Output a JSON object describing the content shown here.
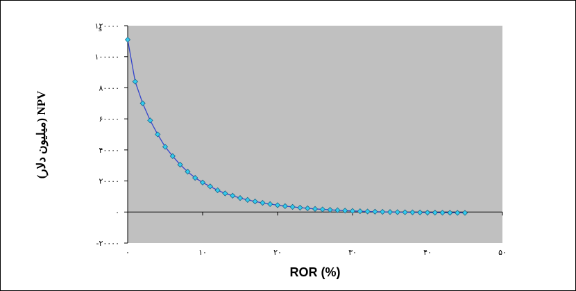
{
  "chart_data": {
    "type": "scatter",
    "title": "",
    "xlabel": "ROR (%)",
    "ylabel": "NPV (میلیون دلار)",
    "y_unit_mark": "s",
    "xlim": [
      0,
      50
    ],
    "ylim": [
      -20000,
      120000
    ],
    "grid": false,
    "legend": "none",
    "x_ticks": [
      {
        "value": 0,
        "label": "۰"
      },
      {
        "value": 10,
        "label": "۱۰"
      },
      {
        "value": 20,
        "label": "۲۰"
      },
      {
        "value": 30,
        "label": "۳۰"
      },
      {
        "value": 40,
        "label": "۴۰"
      },
      {
        "value": 50,
        "label": "۵۰"
      }
    ],
    "y_ticks": [
      {
        "value": 120000,
        "label": "۱۲۰۰۰۰"
      },
      {
        "value": 100000,
        "label": "۱۰۰۰۰۰"
      },
      {
        "value": 80000,
        "label": "۸۰۰۰۰"
      },
      {
        "value": 60000,
        "label": "۶۰۰۰۰"
      },
      {
        "value": 40000,
        "label": "۴۰۰۰۰"
      },
      {
        "value": 20000,
        "label": "۲۰۰۰۰"
      },
      {
        "value": 0,
        "label": "۰"
      },
      {
        "value": -20000,
        "label": "-۲۰۰۰۰"
      }
    ],
    "series": [
      {
        "x": [
          0,
          1,
          2,
          3,
          4,
          5,
          6,
          7,
          8,
          9,
          10,
          11,
          12,
          13,
          14,
          15,
          16,
          17,
          18,
          19,
          20,
          21,
          22,
          23,
          24,
          25,
          26,
          27,
          28,
          29,
          30,
          31,
          32,
          33,
          34,
          35,
          36,
          37,
          38,
          39,
          40,
          41,
          42,
          43,
          44,
          45
        ],
        "y": [
          111000,
          84000,
          70000,
          59000,
          50000,
          42000,
          36000,
          30500,
          26000,
          22000,
          19000,
          16500,
          14000,
          12000,
          10500,
          9000,
          7800,
          6800,
          5900,
          5100,
          4400,
          3800,
          3300,
          2800,
          2400,
          2000,
          1700,
          1400,
          1150,
          900,
          700,
          520,
          360,
          220,
          100,
          0,
          -80,
          -160,
          -230,
          -290,
          -340,
          -390,
          -430,
          -470,
          -500,
          -530
        ]
      }
    ],
    "colors": {
      "plot_background": "#c0c0c0",
      "line": "#3344cc",
      "marker_fill": "#33ccee",
      "marker_stroke": "#1a6688"
    }
  }
}
